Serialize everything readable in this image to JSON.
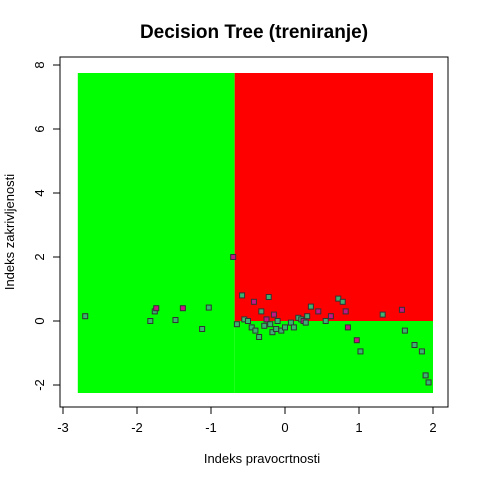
{
  "chart_data": {
    "type": "scatter",
    "title": "Decision Tree (treniranje)",
    "xlabel": "Indeks pravocrtnosti",
    "ylabel": "Indeks zakrivljenosti",
    "xlim": [
      -2.8,
      2.0
    ],
    "ylim": [
      -2.25,
      7.75
    ],
    "x_ticks": [
      -3,
      -2,
      -1,
      0,
      1,
      2
    ],
    "y_ticks": [
      -2,
      0,
      2,
      4,
      6,
      8
    ],
    "grid": false,
    "legend": "none",
    "colors": {
      "region_a": "#00ff00",
      "region_b": "#ff0000",
      "point_a": "#3cb371",
      "point_b": "#c71585",
      "point_border": "#333333"
    },
    "regions": [
      {
        "x": [
          -2.8,
          -0.68
        ],
        "y": [
          -2.25,
          7.75
        ],
        "class": "a"
      },
      {
        "x": [
          -0.68,
          2.0
        ],
        "y": [
          0.0,
          7.75
        ],
        "class": "b"
      },
      {
        "x": [
          -0.68,
          2.0
        ],
        "y": [
          -2.25,
          0.0
        ],
        "class": "a"
      }
    ],
    "points": [
      {
        "x": -2.7,
        "y": 0.15,
        "class": "a"
      },
      {
        "x": -1.82,
        "y": 0.0,
        "class": "a"
      },
      {
        "x": -1.76,
        "y": 0.3,
        "class": "a"
      },
      {
        "x": -1.74,
        "y": 0.4,
        "class": "b"
      },
      {
        "x": -1.48,
        "y": 0.03,
        "class": "a"
      },
      {
        "x": -1.38,
        "y": 0.4,
        "class": "b"
      },
      {
        "x": -1.12,
        "y": -0.25,
        "class": "a"
      },
      {
        "x": -1.03,
        "y": 0.42,
        "class": "a"
      },
      {
        "x": -0.7,
        "y": 2.0,
        "class": "b"
      },
      {
        "x": -0.65,
        "y": -0.1,
        "class": "a"
      },
      {
        "x": -0.58,
        "y": 0.8,
        "class": "a"
      },
      {
        "x": -0.55,
        "y": 0.05,
        "class": "a"
      },
      {
        "x": -0.5,
        "y": 0.0,
        "class": "a"
      },
      {
        "x": -0.45,
        "y": -0.2,
        "class": "a"
      },
      {
        "x": -0.42,
        "y": 0.6,
        "class": "b"
      },
      {
        "x": -0.4,
        "y": -0.3,
        "class": "a"
      },
      {
        "x": -0.35,
        "y": -0.5,
        "class": "a"
      },
      {
        "x": -0.32,
        "y": 0.3,
        "class": "a"
      },
      {
        "x": -0.28,
        "y": -0.15,
        "class": "a"
      },
      {
        "x": -0.25,
        "y": 0.05,
        "class": "b"
      },
      {
        "x": -0.22,
        "y": 0.75,
        "class": "a"
      },
      {
        "x": -0.2,
        "y": -0.1,
        "class": "a"
      },
      {
        "x": -0.17,
        "y": -0.35,
        "class": "a"
      },
      {
        "x": -0.15,
        "y": 0.2,
        "class": "b"
      },
      {
        "x": -0.12,
        "y": -0.25,
        "class": "a"
      },
      {
        "x": -0.1,
        "y": 0.0,
        "class": "a"
      },
      {
        "x": -0.05,
        "y": -0.3,
        "class": "a"
      },
      {
        "x": 0.0,
        "y": -0.2,
        "class": "a"
      },
      {
        "x": 0.08,
        "y": -0.05,
        "class": "a"
      },
      {
        "x": 0.12,
        "y": -0.2,
        "class": "a"
      },
      {
        "x": 0.18,
        "y": 0.1,
        "class": "a"
      },
      {
        "x": 0.22,
        "y": 0.05,
        "class": "a"
      },
      {
        "x": 0.25,
        "y": 0.0,
        "class": "b"
      },
      {
        "x": 0.28,
        "y": -0.05,
        "class": "a"
      },
      {
        "x": 0.3,
        "y": 0.15,
        "class": "a"
      },
      {
        "x": 0.35,
        "y": 0.45,
        "class": "a"
      },
      {
        "x": 0.45,
        "y": 0.3,
        "class": "b"
      },
      {
        "x": 0.55,
        "y": 0.0,
        "class": "a"
      },
      {
        "x": 0.62,
        "y": 0.15,
        "class": "b"
      },
      {
        "x": 0.72,
        "y": 0.7,
        "class": "a"
      },
      {
        "x": 0.78,
        "y": 0.6,
        "class": "a"
      },
      {
        "x": 0.82,
        "y": 0.3,
        "class": "b"
      },
      {
        "x": 0.85,
        "y": -0.2,
        "class": "b"
      },
      {
        "x": 0.97,
        "y": -0.6,
        "class": "b"
      },
      {
        "x": 1.02,
        "y": -0.95,
        "class": "a"
      },
      {
        "x": 1.32,
        "y": 0.2,
        "class": "a"
      },
      {
        "x": 1.58,
        "y": 0.35,
        "class": "b"
      },
      {
        "x": 1.62,
        "y": -0.3,
        "class": "a"
      },
      {
        "x": 1.75,
        "y": -0.75,
        "class": "a"
      },
      {
        "x": 1.85,
        "y": -0.95,
        "class": "a"
      },
      {
        "x": 1.9,
        "y": -1.7,
        "class": "a"
      },
      {
        "x": 1.94,
        "y": -1.92,
        "class": "a"
      }
    ]
  }
}
